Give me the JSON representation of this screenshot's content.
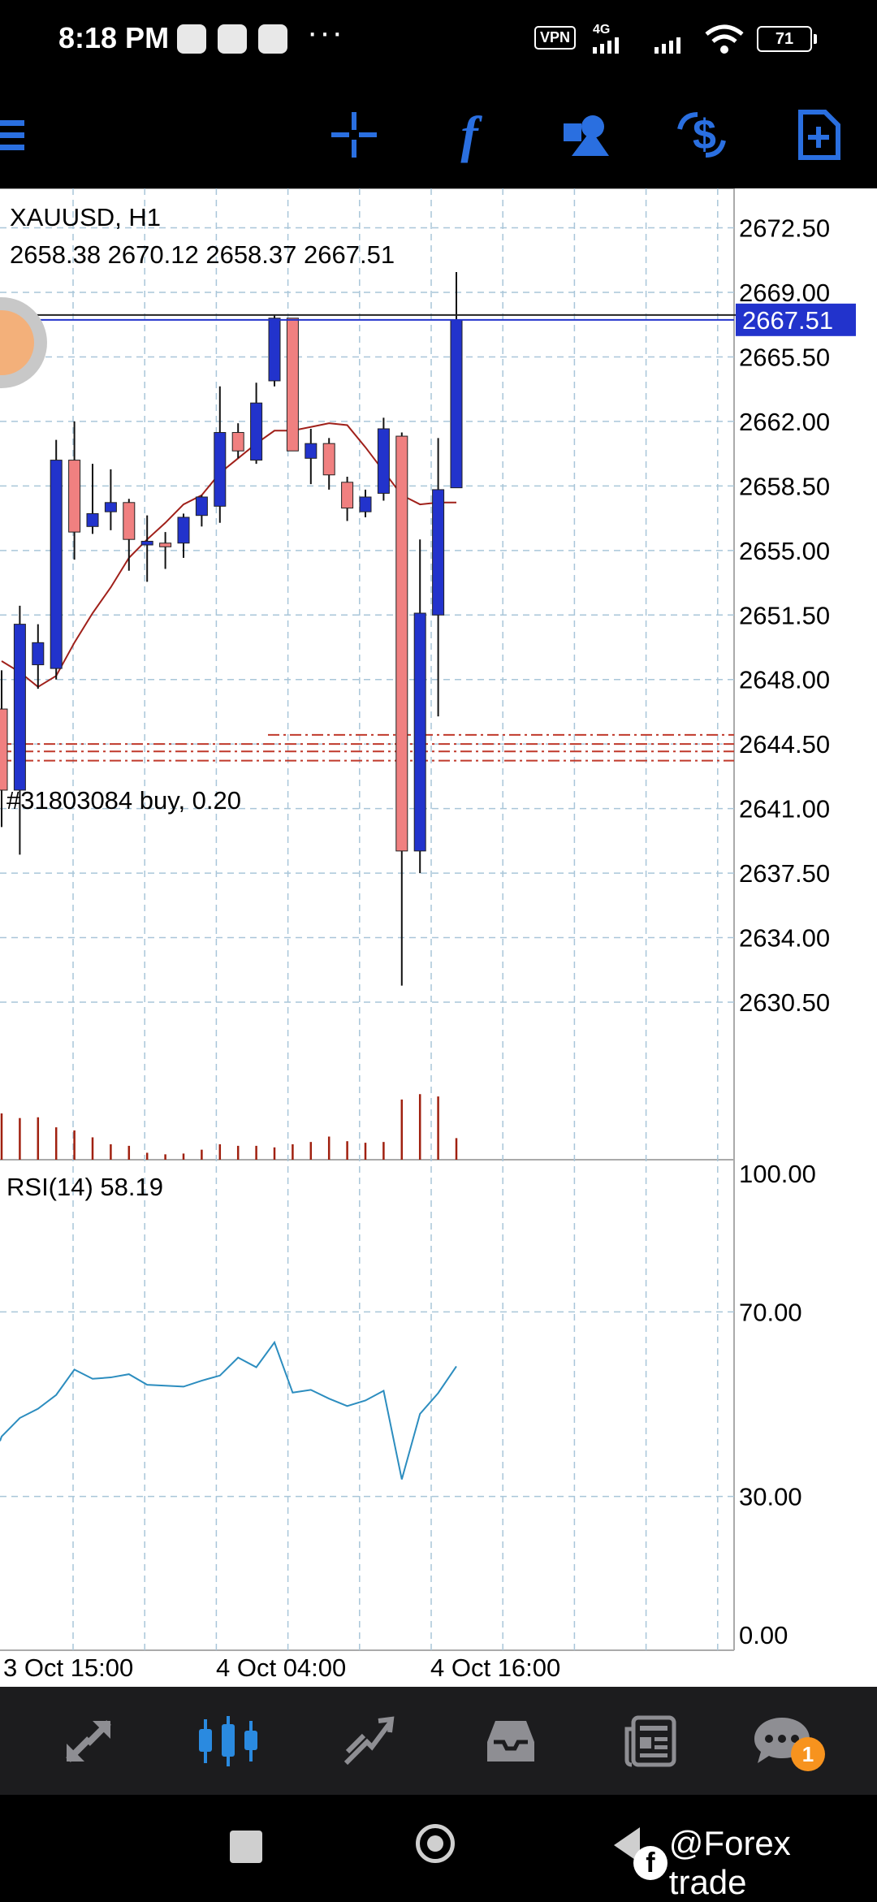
{
  "status_bar": {
    "time": "8:18 PM",
    "network": "4G",
    "vpn_label": "VPN",
    "battery": "71",
    "overflow": "···"
  },
  "toolbar": {
    "icons": [
      "menu-icon",
      "crosshair-icon",
      "indicators-icon",
      "objects-icon",
      "symbols-icon",
      "new-order-icon"
    ],
    "accent": "#2a6fe0"
  },
  "chart": {
    "symbol": "XAUUSD, H1",
    "ohlc": "2658.38 2670.12 2658.37 2667.51",
    "current_price": "2667.51",
    "order_label": "#31803084 buy, 0.20",
    "indicator_label": "RSI(14) 58.19",
    "price_ticks": [
      "2672.50",
      "2669.00",
      "2665.50",
      "2662.00",
      "2658.50",
      "2655.00",
      "2651.50",
      "2648.00",
      "2644.50",
      "2641.00",
      "2637.50",
      "2634.00",
      "2630.50"
    ],
    "rsi_ticks": [
      "100.00",
      "70.00",
      "30.00",
      "0.00"
    ],
    "time_labels": [
      "3 Oct 15:00",
      "4 Oct 04:00",
      "4 Oct 16:00"
    ],
    "bull_color": "#2233cc",
    "bear_color": "#f08080"
  },
  "chart_data": {
    "type": "candlestick",
    "title": "XAUUSD, H1",
    "timeframe": "H1",
    "ylim": [
      2628,
      2673.5
    ],
    "candles": [
      {
        "o": 2646.4,
        "h": 2648.5,
        "l": 2640.0,
        "c": 2642.0
      },
      {
        "o": 2642.0,
        "h": 2652.0,
        "l": 2638.5,
        "c": 2651.0
      },
      {
        "o": 2648.8,
        "h": 2651.0,
        "l": 2647.5,
        "c": 2650.0
      },
      {
        "o": 2648.6,
        "h": 2661.0,
        "l": 2648.0,
        "c": 2659.9
      },
      {
        "o": 2659.9,
        "h": 2662.0,
        "l": 2654.5,
        "c": 2656.0
      },
      {
        "o": 2656.3,
        "h": 2659.7,
        "l": 2655.9,
        "c": 2657.0
      },
      {
        "o": 2657.1,
        "h": 2659.4,
        "l": 2656.1,
        "c": 2657.6
      },
      {
        "o": 2657.6,
        "h": 2657.8,
        "l": 2653.9,
        "c": 2655.6
      },
      {
        "o": 2655.3,
        "h": 2656.9,
        "l": 2653.3,
        "c": 2655.5
      },
      {
        "o": 2655.4,
        "h": 2656.0,
        "l": 2654.0,
        "c": 2655.2
      },
      {
        "o": 2655.4,
        "h": 2657.0,
        "l": 2654.6,
        "c": 2656.8
      },
      {
        "o": 2656.9,
        "h": 2658.0,
        "l": 2656.3,
        "c": 2657.9
      },
      {
        "o": 2657.4,
        "h": 2663.9,
        "l": 2656.5,
        "c": 2661.4
      },
      {
        "o": 2661.4,
        "h": 2661.9,
        "l": 2660.0,
        "c": 2660.4
      },
      {
        "o": 2659.9,
        "h": 2664.1,
        "l": 2659.7,
        "c": 2663.0
      },
      {
        "o": 2664.2,
        "h": 2667.8,
        "l": 2663.9,
        "c": 2667.6
      },
      {
        "o": 2667.6,
        "h": 2667.6,
        "l": 2660.5,
        "c": 2660.4
      },
      {
        "o": 2660.0,
        "h": 2661.6,
        "l": 2658.6,
        "c": 2660.8
      },
      {
        "o": 2660.8,
        "h": 2661.1,
        "l": 2658.3,
        "c": 2659.1
      },
      {
        "o": 2658.7,
        "h": 2659.0,
        "l": 2656.6,
        "c": 2657.3
      },
      {
        "o": 2657.1,
        "h": 2658.3,
        "l": 2656.8,
        "c": 2657.9
      },
      {
        "o": 2658.1,
        "h": 2662.2,
        "l": 2657.7,
        "c": 2661.6
      },
      {
        "o": 2661.2,
        "h": 2661.4,
        "l": 2631.4,
        "c": 2638.7
      },
      {
        "o": 2638.7,
        "h": 2655.6,
        "l": 2637.5,
        "c": 2651.6
      },
      {
        "o": 2651.5,
        "h": 2661.1,
        "l": 2646.0,
        "c": 2658.3
      },
      {
        "o": 2658.4,
        "h": 2670.1,
        "l": 2658.4,
        "c": 2667.5
      }
    ],
    "moving_average": [
      2649.0,
      2648.4,
      2647.6,
      2648.2,
      2650.0,
      2651.6,
      2653.0,
      2654.6,
      2655.6,
      2656.5,
      2657.5,
      2658.0,
      2659.2,
      2660.0,
      2660.8,
      2661.5,
      2661.5,
      2661.7,
      2661.9,
      2661.8,
      2660.6,
      2659.3,
      2658.0,
      2657.5,
      2657.6,
      2657.6
    ],
    "volume": [
      60,
      54,
      55,
      42,
      38,
      29,
      20,
      18,
      9,
      7,
      8,
      13,
      20,
      18,
      18,
      16,
      20,
      23,
      30,
      24,
      22,
      23,
      78,
      85,
      82,
      28
    ],
    "rsi": [
      43.0,
      47.0,
      49.0,
      52.0,
      57.5,
      55.5,
      55.8,
      56.5,
      54.2,
      54.0,
      53.8,
      55.1,
      56.2,
      60.1,
      58.0,
      63.4,
      52.5,
      53.1,
      51.2,
      49.6,
      50.8,
      52.9,
      33.7,
      47.9,
      52.4,
      58.2
    ],
    "rsi_ylim": [
      0,
      100
    ],
    "current_price": 2667.51,
    "order_levels": [
      2645.0,
      2644.5,
      2644.1,
      2643.6
    ],
    "grid": true
  }
}
